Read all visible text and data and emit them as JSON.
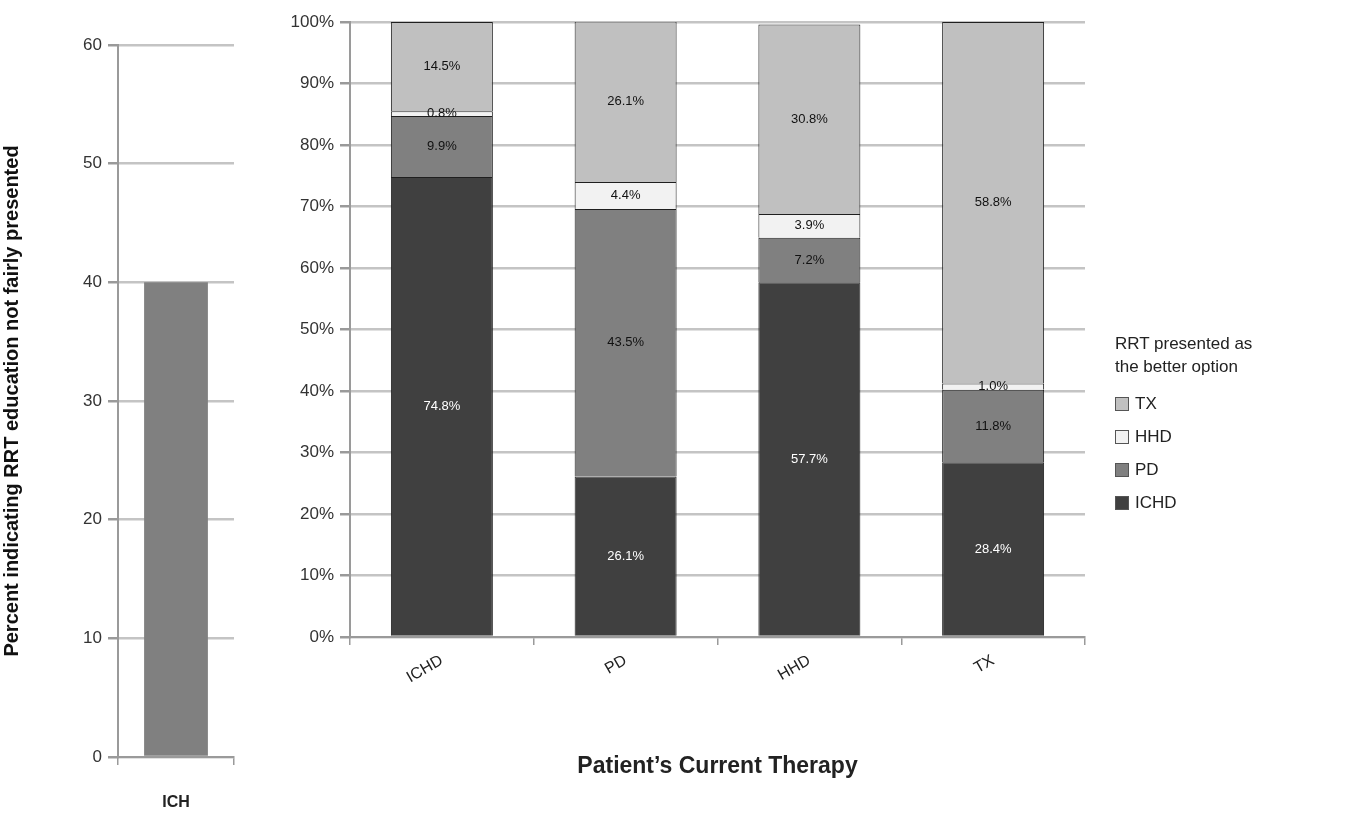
{
  "chart_data": [
    {
      "type": "bar",
      "ylabel": "Percent indicating RRT education not fairly presented",
      "categories": [
        "ICH"
      ],
      "values": [
        40
      ],
      "color": "#808080",
      "ylim": [
        0,
        60
      ],
      "yticks": [
        0,
        10,
        20,
        30,
        40,
        50,
        60
      ],
      "grid": "y"
    },
    {
      "type": "bar",
      "stacked": true,
      "xlabel": "Patient’s Current Therapy",
      "legend_title": "RRT presented as the better option",
      "legend": "right",
      "grid": "y",
      "categories": [
        "ICHD",
        "PD",
        "HHD",
        "TX"
      ],
      "series": [
        {
          "name": "ICHD",
          "color": "#404040",
          "values": [
            74.8,
            26.1,
            57.7,
            28.4
          ],
          "value_labels": [
            "74.8%",
            "26.1%",
            "57.7%",
            "28.4%"
          ]
        },
        {
          "name": "PD",
          "color": "#808080",
          "values": [
            9.9,
            43.5,
            7.2,
            11.8
          ],
          "value_labels": [
            "9.9%",
            "43.5%",
            "7.2%",
            "11.8%"
          ]
        },
        {
          "name": "HHD",
          "color": "#f2f2f2",
          "values": [
            0.8,
            4.4,
            3.9,
            1.0
          ],
          "value_labels": [
            "0.8%",
            "4.4%",
            "3.9%",
            "1.0%"
          ]
        },
        {
          "name": "TX",
          "color": "#c0c0c0",
          "values": [
            14.5,
            26.1,
            30.8,
            58.8
          ],
          "value_labels": [
            "14.5%",
            "26.1%",
            "30.8%",
            "58.8%"
          ]
        }
      ],
      "ylim": [
        0,
        100
      ],
      "yticks": [
        {
          "value": 0,
          "label": "0%"
        },
        {
          "value": 10,
          "label": "10%"
        },
        {
          "value": 20,
          "label": "20%"
        },
        {
          "value": 30,
          "label": "30%"
        },
        {
          "value": 40,
          "label": "40%"
        },
        {
          "value": 50,
          "label": "50%"
        },
        {
          "value": 60,
          "label": "60%"
        },
        {
          "value": 70,
          "label": "70%"
        },
        {
          "value": 80,
          "label": "80%"
        },
        {
          "value": 90,
          "label": "90%"
        },
        {
          "value": 100,
          "label": "100%"
        }
      ]
    }
  ]
}
